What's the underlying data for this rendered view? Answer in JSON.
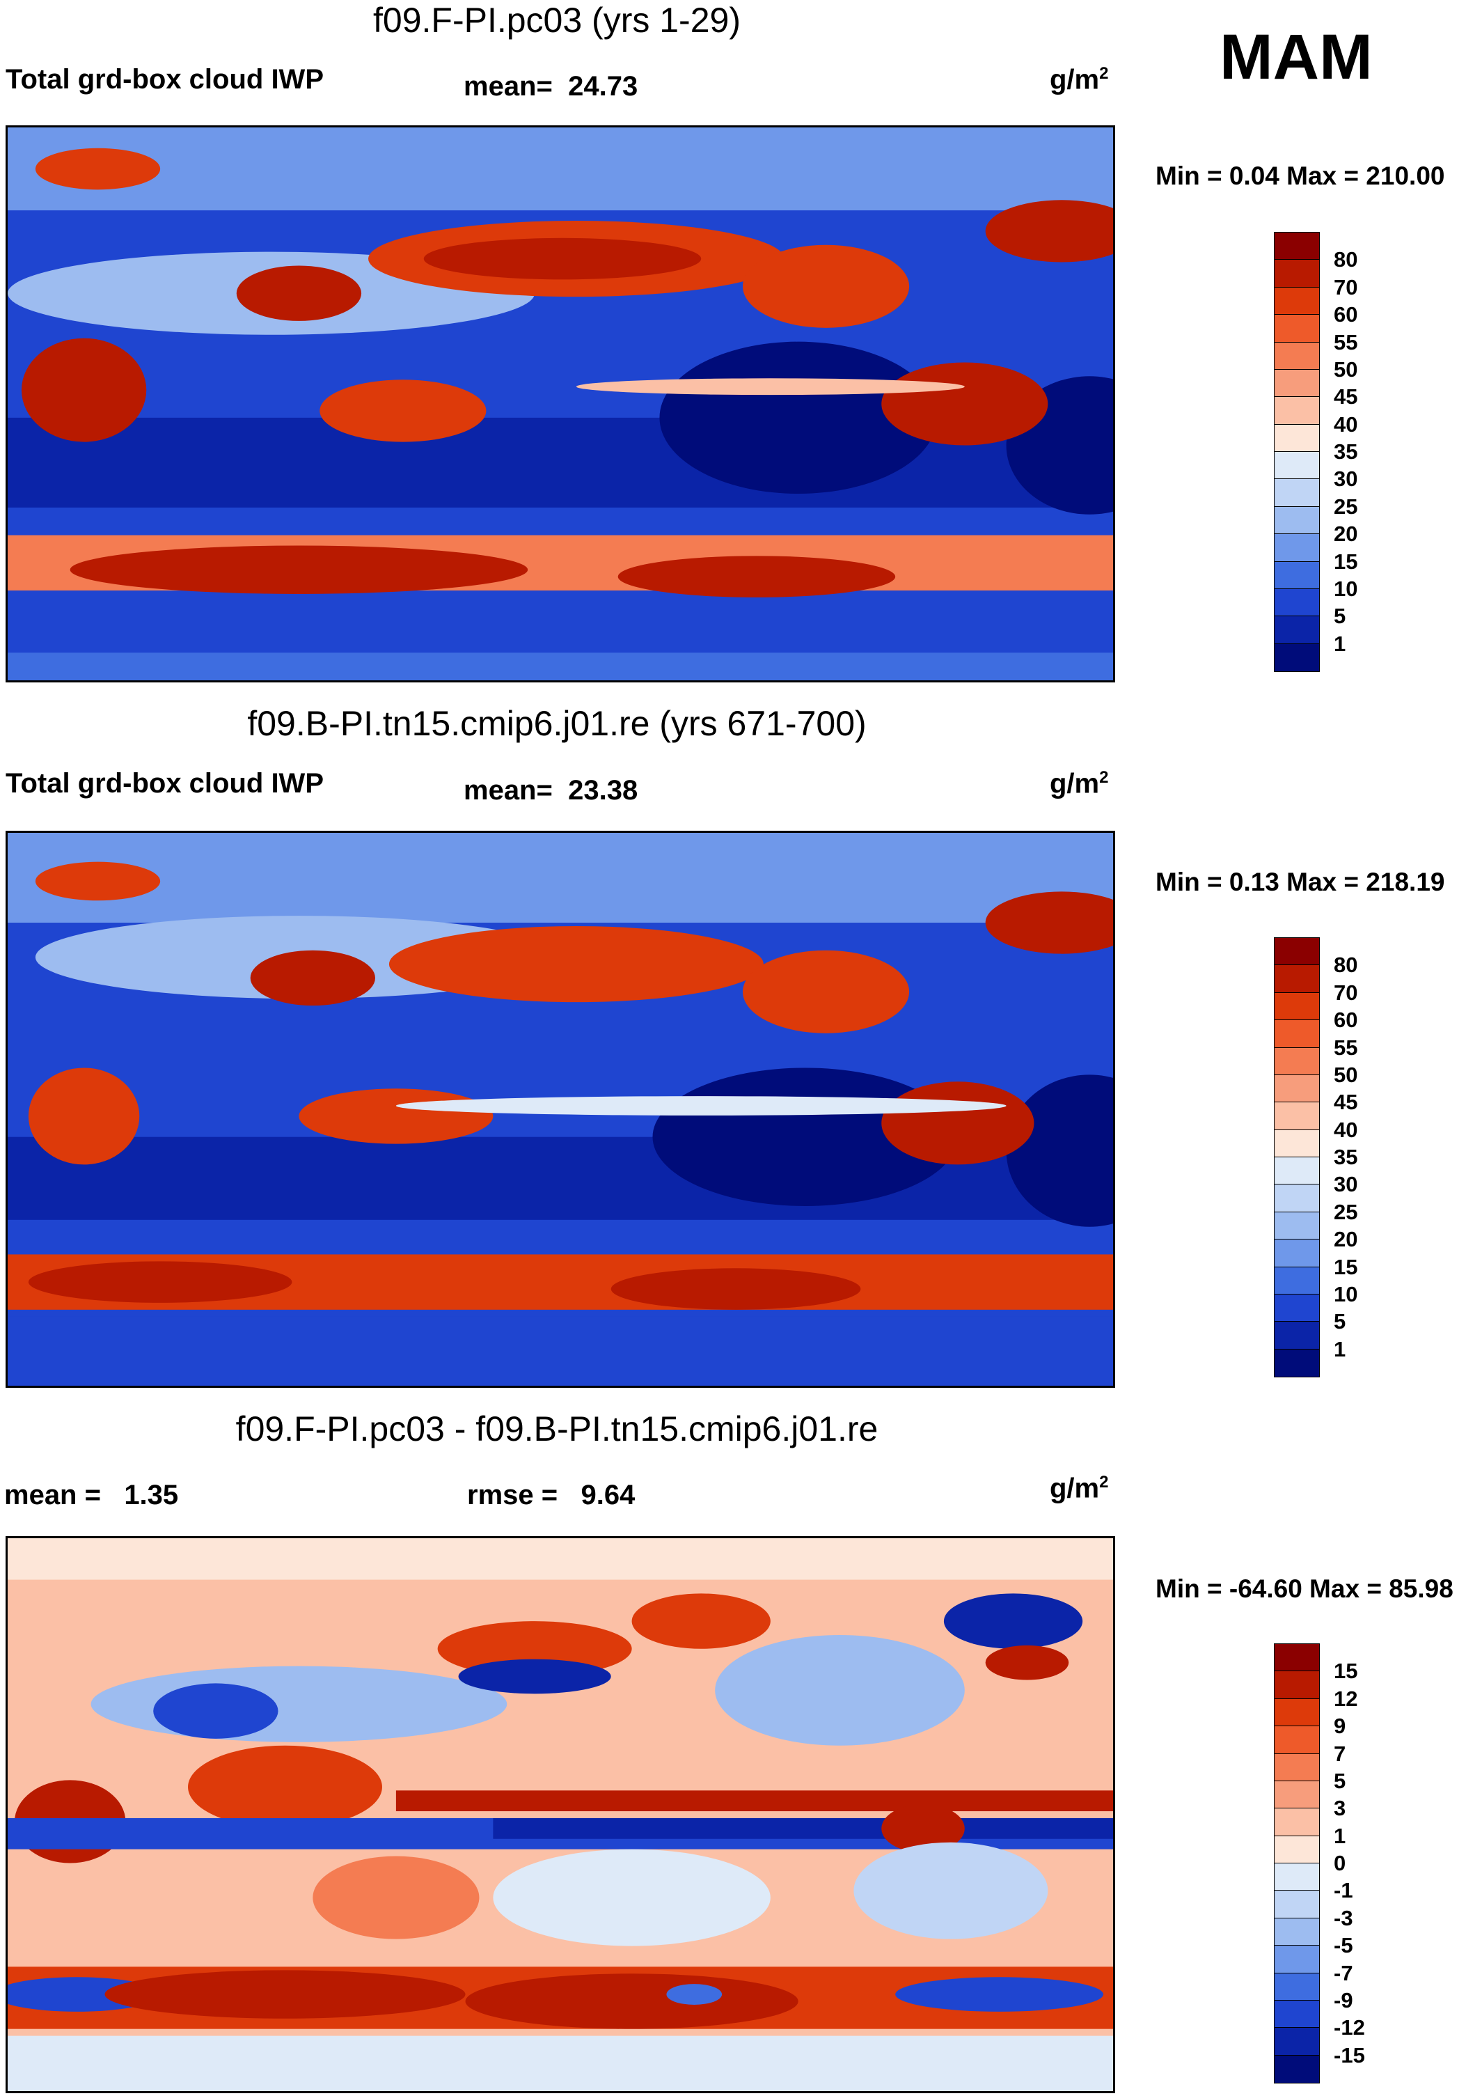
{
  "season": "MAM",
  "units_base": "g/m",
  "units_exp": "2",
  "panels": [
    {
      "title": "f09.F-PI.pc03 (yrs 1-29)",
      "left_label": "Total grd-box cloud IWP",
      "stat_label": "mean=",
      "stat_value": "24.73",
      "minmax": "Min =   0.04 Max = 210.00",
      "kind": "abs"
    },
    {
      "title": "f09.B-PI.tn15.cmip6.j01.re (yrs 671-700)",
      "left_label": "Total grd-box cloud IWP",
      "stat_label": "mean=",
      "stat_value": "23.38",
      "minmax": "Min =   0.13 Max = 218.19",
      "kind": "abs2"
    },
    {
      "title": "f09.F-PI.pc03 - f09.B-PI.tn15.cmip6.j01.re",
      "left_stat_label": "mean =",
      "left_stat_value": "1.35",
      "stat_label": "rmse =",
      "stat_value": "9.64",
      "minmax": "Min = -64.60 Max =  85.98",
      "kind": "diff"
    }
  ],
  "colorbar_abs": {
    "levels": [
      "80",
      "70",
      "60",
      "55",
      "50",
      "45",
      "40",
      "35",
      "30",
      "25",
      "20",
      "15",
      "10",
      "5",
      "1"
    ],
    "colors": [
      "#8b0000",
      "#b81a00",
      "#dd3a0a",
      "#ee5a2a",
      "#f47c52",
      "#f79d7c",
      "#fbc0a6",
      "#fde6d8",
      "#deeaf8",
      "#c0d5f5",
      "#9dbcf0",
      "#6f98ea",
      "#3e6de0",
      "#1f45d0",
      "#0b24a8",
      "#000c7a"
    ]
  },
  "colorbar_diff": {
    "levels": [
      "15",
      "12",
      "9",
      "7",
      "5",
      "3",
      "1",
      "0",
      "-1",
      "-3",
      "-5",
      "-7",
      "-9",
      "-12",
      "-15"
    ],
    "colors": [
      "#8b0000",
      "#b81a00",
      "#dd3a0a",
      "#ee5a2a",
      "#f47c52",
      "#f79d7c",
      "#fbc0a6",
      "#fde6d8",
      "#deeaf8",
      "#c0d5f5",
      "#9dbcf0",
      "#6f98ea",
      "#3e6de0",
      "#1f45d0",
      "#0b24a8",
      "#000c7a"
    ]
  }
}
